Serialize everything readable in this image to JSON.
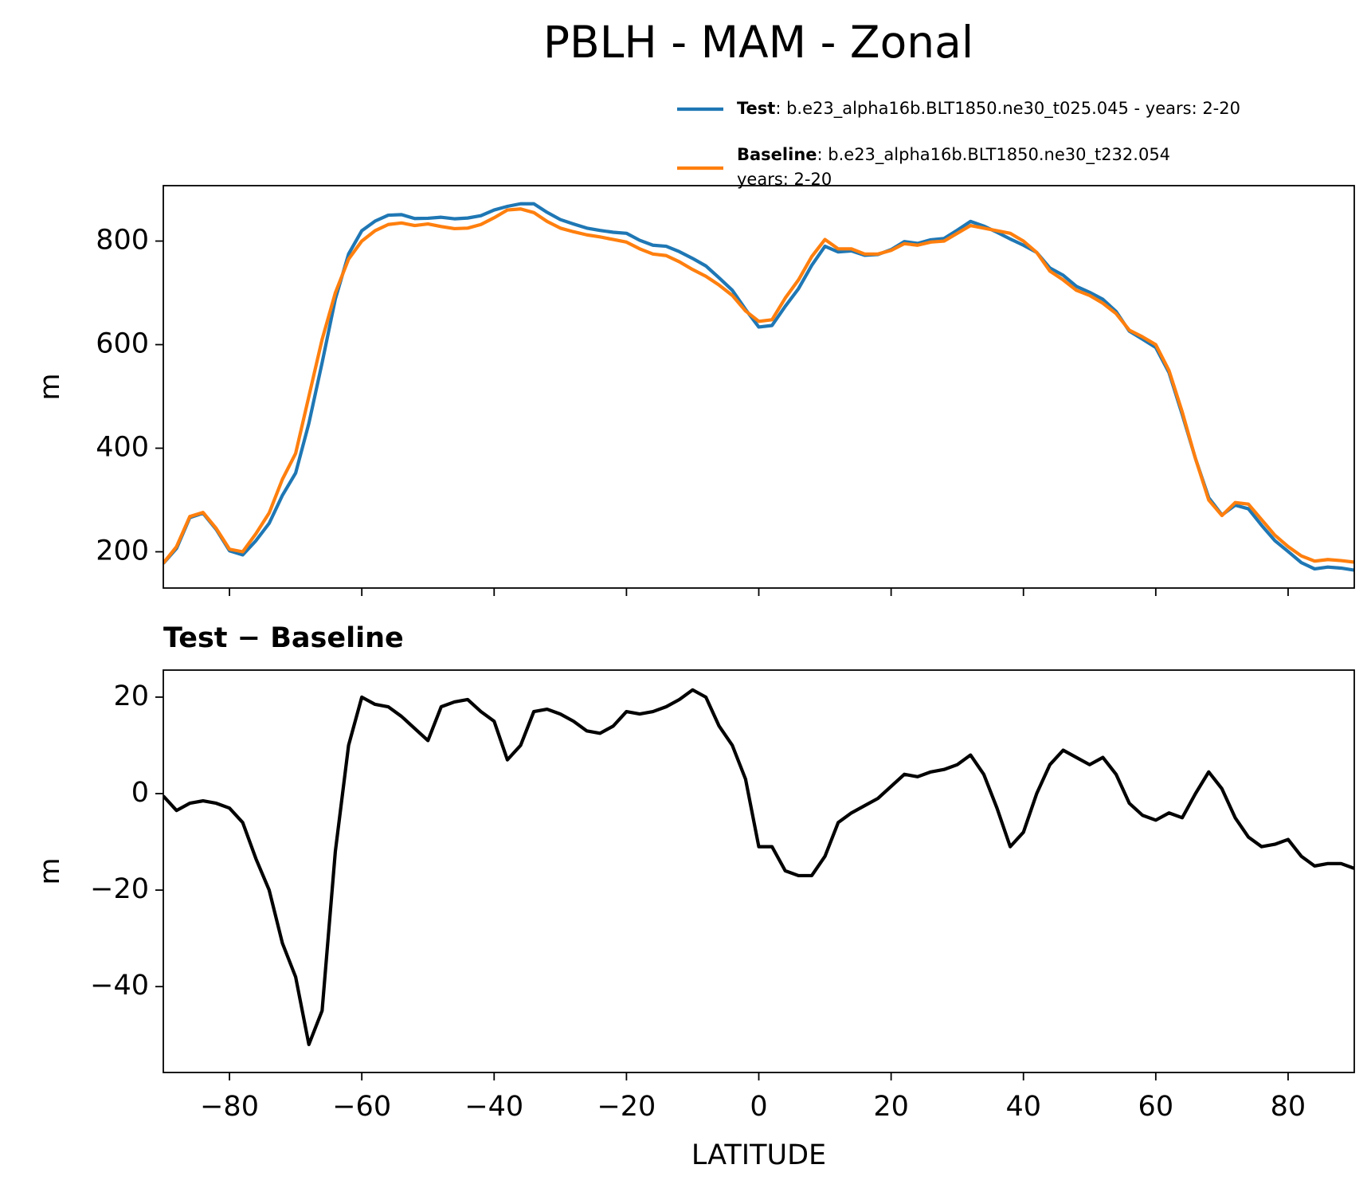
{
  "chart_data": [
    {
      "type": "line",
      "title": "PBLH - MAM - Zonal",
      "ylabel": "m",
      "x": [
        -90,
        -88,
        -86,
        -84,
        -82,
        -80,
        -78,
        -76,
        -74,
        -72,
        -70,
        -68,
        -66,
        -64,
        -62,
        -60,
        -58,
        -56,
        -54,
        -52,
        -50,
        -48,
        -46,
        -44,
        -42,
        -40,
        -38,
        -36,
        -34,
        -32,
        -30,
        -28,
        -26,
        -24,
        -22,
        -20,
        -18,
        -16,
        -14,
        -12,
        -10,
        -8,
        -6,
        -4,
        -2,
        0,
        2,
        4,
        6,
        8,
        10,
        12,
        14,
        16,
        18,
        20,
        22,
        24,
        26,
        28,
        30,
        32,
        34,
        36,
        38,
        40,
        42,
        44,
        46,
        48,
        50,
        52,
        54,
        56,
        58,
        60,
        62,
        64,
        66,
        68,
        70,
        72,
        74,
        76,
        78,
        80,
        82,
        84,
        86,
        88,
        90
      ],
      "series": [
        {
          "name": "Test",
          "label_lines": [
            ": b.e23_alpha16b.BLT1850.ne30_t025.045 - years: 2-20"
          ],
          "color": "#1f77b4",
          "values": [
            177.5,
            206.5,
            266,
            274.5,
            243,
            202,
            194,
            221.5,
            255,
            309,
            352,
            448,
            565,
            688,
            775,
            820,
            838.5,
            850,
            851,
            843.5,
            844,
            846,
            843,
            844.5,
            849,
            860,
            867,
            872,
            872,
            855.5,
            841.5,
            833,
            825,
            820.5,
            817,
            815,
            801.5,
            792,
            790,
            779.5,
            766.5,
            752,
            729,
            705,
            668,
            634,
            637,
            674,
            708,
            753,
            790,
            779,
            781,
            772.5,
            774,
            783.5,
            799,
            795.5,
            802.5,
            805,
            821,
            838,
            829,
            817,
            804,
            792,
            778,
            748,
            734,
            712.5,
            701,
            687.5,
            664,
            626,
            610.5,
            594.5,
            546,
            465,
            380,
            304.5,
            271,
            290,
            283,
            251,
            221.5,
            200.5,
            179,
            167,
            170.5,
            168.5,
            164.5
          ]
        },
        {
          "name": "Baseline",
          "label_lines": [
            ": b.e23_alpha16b.BLT1850.ne30_t232.054",
            "years: 2-20"
          ],
          "color": "#ff7f0e",
          "values": [
            178,
            210,
            268,
            276,
            245,
            205,
            200,
            235,
            275,
            340,
            390,
            500,
            610,
            700,
            765,
            800,
            820,
            832,
            835,
            830,
            833,
            828,
            824,
            825,
            832,
            845,
            860,
            862,
            855,
            838,
            825,
            818,
            812,
            808,
            803,
            798,
            785,
            775,
            772,
            760,
            745,
            732,
            715,
            695,
            665,
            645,
            648,
            690,
            725,
            770,
            803,
            785,
            785,
            775,
            775,
            782,
            795,
            792,
            798,
            800,
            815,
            830,
            825,
            820,
            815,
            800,
            778,
            742,
            725,
            705,
            695,
            680,
            660,
            628,
            615,
            600,
            550,
            470,
            380,
            300,
            270,
            295,
            292,
            262,
            232,
            210,
            192,
            182,
            185,
            183,
            180
          ]
        }
      ],
      "xlim": [
        -90,
        90
      ],
      "xticks": [
        -80,
        -60,
        -40,
        -20,
        0,
        20,
        40,
        60,
        80
      ],
      "ylim": [
        130,
        907
      ],
      "yticks": [
        200,
        400,
        600,
        800
      ]
    },
    {
      "type": "line",
      "title": "Test − Baseline",
      "ylabel": "m",
      "xlabel": "LATITUDE",
      "x": [
        -90,
        -88,
        -86,
        -84,
        -82,
        -80,
        -78,
        -76,
        -74,
        -72,
        -70,
        -68,
        -66,
        -64,
        -62,
        -60,
        -58,
        -56,
        -54,
        -52,
        -50,
        -48,
        -46,
        -44,
        -42,
        -40,
        -38,
        -36,
        -34,
        -32,
        -30,
        -28,
        -26,
        -24,
        -22,
        -20,
        -18,
        -16,
        -14,
        -12,
        -10,
        -8,
        -6,
        -4,
        -2,
        0,
        2,
        4,
        6,
        8,
        10,
        12,
        14,
        16,
        18,
        20,
        22,
        24,
        26,
        28,
        30,
        32,
        34,
        36,
        38,
        40,
        42,
        44,
        46,
        48,
        50,
        52,
        54,
        56,
        58,
        60,
        62,
        64,
        66,
        68,
        70,
        72,
        74,
        76,
        78,
        80,
        82,
        84,
        86,
        88,
        90
      ],
      "series": [
        {
          "color": "#000000",
          "values": [
            -0.5,
            -3.5,
            -2,
            -1.5,
            -2,
            -3,
            -6,
            -13.5,
            -20,
            -31,
            -38,
            -52,
            -45,
            -12,
            10,
            20,
            18.5,
            18,
            16,
            13.5,
            11,
            18,
            19,
            19.5,
            17,
            15,
            7,
            10,
            17,
            17.5,
            16.5,
            15,
            13,
            12.5,
            14,
            17,
            16.5,
            17,
            18,
            19.5,
            21.5,
            20,
            14,
            10,
            3,
            -11,
            -11,
            -16,
            -17,
            -17,
            -13,
            -6,
            -4,
            -2.5,
            -1,
            1.5,
            4,
            3.5,
            4.5,
            5,
            6,
            8,
            4,
            -3,
            -11,
            -8,
            0,
            6,
            9,
            7.5,
            6,
            7.5,
            4,
            -2,
            -4.5,
            -5.5,
            -4,
            -5,
            0,
            4.5,
            1,
            -5,
            -9,
            -11,
            -10.5,
            -9.5,
            -13,
            -15,
            -14.5,
            -14.5,
            -15.5
          ]
        }
      ],
      "xlim": [
        -90,
        90
      ],
      "xticks": [
        {
          "value": -80,
          "label": "−80"
        },
        {
          "value": -60,
          "label": "−60"
        },
        {
          "value": -40,
          "label": "−40"
        },
        {
          "value": -20,
          "label": "−20"
        },
        0,
        20,
        40,
        60,
        80
      ],
      "ylim": [
        -57.8,
        25.6
      ],
      "yticks": [
        {
          "value": -40,
          "label": "−40"
        },
        {
          "value": -20,
          "label": "−20"
        },
        0,
        20
      ]
    }
  ]
}
